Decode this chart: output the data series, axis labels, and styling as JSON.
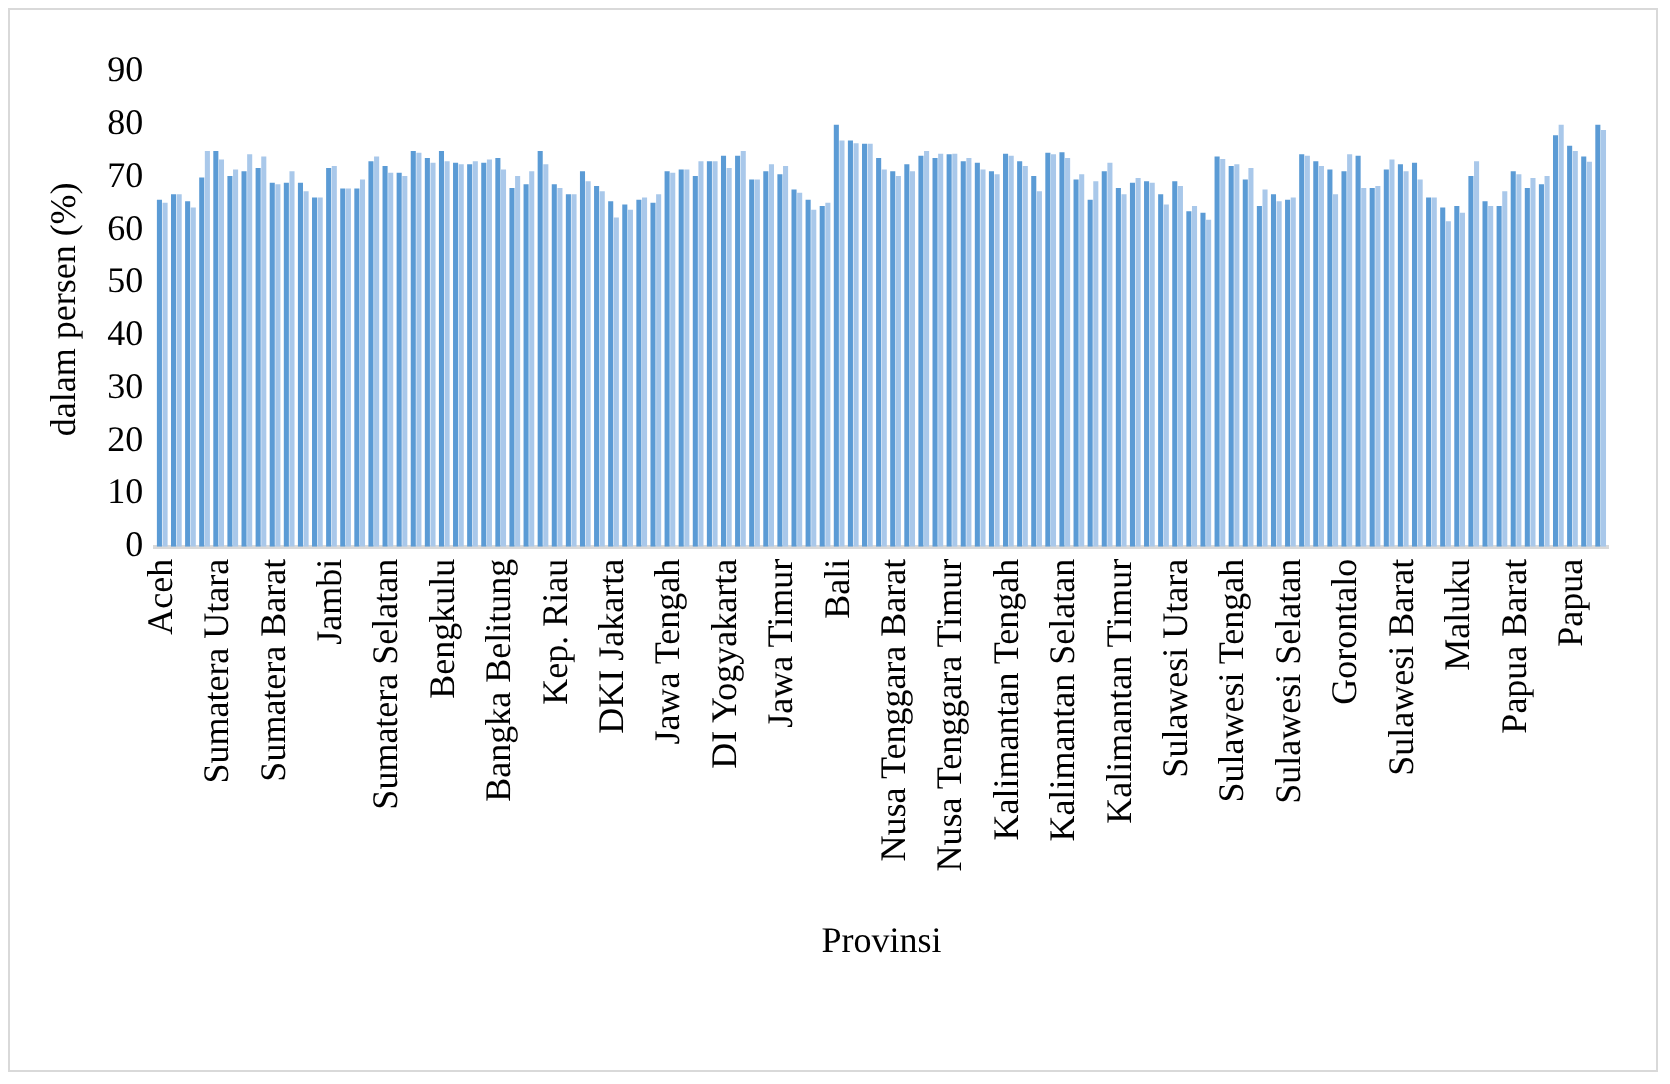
{
  "chart_data": {
    "type": "bar",
    "xlabel": "Provinsi",
    "ylabel": "dalam persen (%)",
    "categories": [
      "Aceh",
      null,
      null,
      null,
      "Sumatera Utara",
      null,
      null,
      null,
      "Sumatera Barat",
      null,
      null,
      null,
      "Jambi",
      null,
      null,
      null,
      "Sumatera Selatan",
      null,
      null,
      null,
      "Bengkulu",
      null,
      null,
      null,
      "Bangka Belitung",
      null,
      null,
      null,
      "Kep. Riau",
      null,
      null,
      null,
      "DKI Jakarta",
      null,
      null,
      null,
      "Jawa Tengah",
      null,
      null,
      null,
      "DI Yogyakarta",
      null,
      null,
      null,
      "Jawa Timur",
      null,
      null,
      null,
      "Bali",
      null,
      null,
      null,
      "Nusa Tenggara Barat",
      null,
      null,
      null,
      "Nusa Tenggara Timur",
      null,
      null,
      null,
      "Kalimantan Tengah",
      null,
      null,
      null,
      "Kalimantan Selatan",
      null,
      null,
      null,
      "Kalimantan Timur",
      null,
      null,
      null,
      "Sulawesi Utara",
      null,
      null,
      null,
      "Sulawesi Tengah",
      null,
      null,
      null,
      "Sulawesi Selatan",
      null,
      null,
      null,
      "Gorontalo",
      null,
      null,
      null,
      "Sulawesi Barat",
      null,
      null,
      null,
      "Maluku",
      null,
      null,
      null,
      "Papua Barat",
      null,
      null,
      null,
      "Papua",
      null,
      null
    ],
    "series": [
      {
        "color": "#5b9bd5",
        "values": [
          65.8,
          66.8,
          65.5,
          70,
          75,
          70.3,
          71.2,
          71.8,
          69,
          69,
          69,
          66.2,
          71.8,
          67.9,
          67.9,
          73.1,
          72.2,
          70.9,
          75,
          73.7,
          75,
          72.8,
          72.5,
          72.8,
          73.7,
          68,
          68.7,
          75,
          68.7,
          66.8,
          71.2,
          68.4,
          65.5,
          64.9,
          65.8,
          65.2,
          71.2,
          71.5,
          70.3,
          73.1,
          74.1,
          74.1,
          69.6,
          71.2,
          70.6,
          67.7,
          65.8,
          64.6,
          80,
          77,
          76.4,
          73.7,
          71.2,
          72.5,
          74.1,
          73.7,
          74.4,
          73.1,
          72.8,
          71.2,
          74.5,
          73.1,
          70.3,
          74.7,
          74.8,
          69.6,
          65.8,
          71.2,
          68,
          69,
          69.3,
          66.8,
          69.3,
          63.6,
          63.3,
          74,
          72.2,
          69.6,
          64.6,
          66.8,
          65.8,
          74.4,
          73.1,
          71.5,
          71.2,
          74.1,
          68,
          71.5,
          72.5,
          72.8,
          66.2,
          64.3,
          64.6,
          70.3,
          65.5,
          64.6,
          71.2,
          68,
          68.7,
          78,
          76,
          74,
          80
        ]
      },
      {
        "color": "#a9c8ea",
        "values": [
          65.2,
          66.8,
          64.3,
          75,
          73.4,
          71.5,
          74.4,
          74,
          68.7,
          71.2,
          67.4,
          66.2,
          72.2,
          67.9,
          69.6,
          74,
          70.9,
          70.3,
          74.7,
          72.8,
          73.1,
          72.5,
          73.1,
          73.4,
          71.5,
          70.3,
          71.2,
          72.5,
          68,
          66.8,
          69.3,
          67.4,
          62.4,
          63.9,
          66.2,
          66.8,
          70.9,
          71.5,
          73.1,
          73.1,
          71.8,
          75,
          69.6,
          72.5,
          72.2,
          67.1,
          63.9,
          65.2,
          77,
          76.5,
          76.4,
          71.5,
          70.3,
          71.2,
          75,
          74.5,
          74.5,
          73.7,
          71.5,
          70.6,
          74.1,
          72.2,
          67.4,
          74.4,
          73.7,
          70.6,
          69.3,
          72.8,
          66.8,
          69.9,
          69,
          64.9,
          68.4,
          64.6,
          62,
          73.5,
          72.5,
          71.8,
          67.7,
          65.5,
          66.2,
          74.1,
          72.2,
          66.8,
          74.4,
          68,
          68.4,
          73.4,
          71.2,
          69.6,
          66.2,
          61.7,
          63.3,
          73.1,
          64.6,
          67.4,
          70.6,
          69.9,
          70.3,
          80,
          75,
          73,
          79
        ]
      }
    ],
    "ylim": [
      0,
      90
    ],
    "yticks": [
      0,
      10,
      20,
      30,
      40,
      50,
      60,
      70,
      80,
      90
    ],
    "grid": false,
    "legend": false
  }
}
